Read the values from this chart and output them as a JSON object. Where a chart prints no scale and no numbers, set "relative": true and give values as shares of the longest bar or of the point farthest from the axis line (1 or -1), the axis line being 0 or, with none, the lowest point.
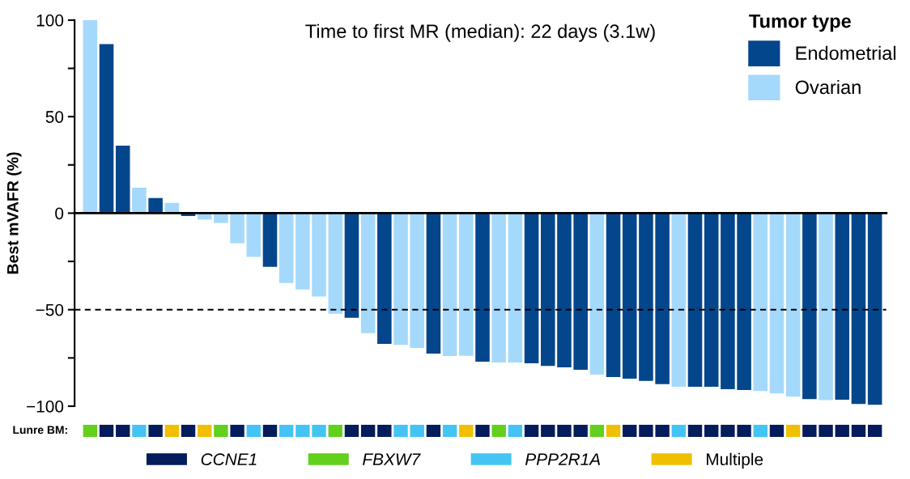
{
  "chart_data": [
    {
      "type": "bar",
      "title": "Time to first MR (median): 22 days (3.1w)",
      "ylabel": "Best mVAFR (%)",
      "legend_title": "Tumor type",
      "legend": "top right",
      "categories": [
        null,
        null,
        null,
        null,
        null,
        null,
        null,
        null,
        null,
        null,
        null,
        null,
        null,
        null,
        null,
        null,
        null,
        null,
        null,
        null,
        null,
        null,
        null,
        null,
        null,
        null,
        null,
        null,
        null,
        null,
        null,
        null,
        null,
        null,
        null,
        null,
        null,
        null,
        null,
        null,
        null,
        null,
        null,
        null,
        null,
        null,
        null,
        null,
        null
      ],
      "series": [
        {
          "name": "Endometrial",
          "color": "#04468c",
          "values": [
            null,
            87.6,
            35.0,
            null,
            7.8,
            null,
            -1.5,
            null,
            null,
            null,
            null,
            -27.8,
            null,
            null,
            null,
            null,
            -54.2,
            null,
            -67.7,
            null,
            null,
            -72.7,
            null,
            null,
            -76.9,
            null,
            null,
            -77.8,
            -79.1,
            -79.9,
            -81.1,
            null,
            -84.9,
            -85.7,
            -86.9,
            -88.6,
            null,
            -89.9,
            -89.9,
            -91.2,
            -91.6,
            null,
            null,
            null,
            -96.3,
            null,
            -96.6,
            -98.8,
            -99.3
          ]
        },
        {
          "name": "Ovarian",
          "color": "#a5d9fb",
          "values": [
            100,
            null,
            null,
            13.2,
            null,
            5.3,
            null,
            -3.3,
            -5.1,
            -15.6,
            -22.7,
            null,
            -36.2,
            -39.5,
            -43.2,
            -52.1,
            null,
            -62.2,
            null,
            -68.2,
            -69.8,
            null,
            -74.0,
            -73.9,
            null,
            -77.4,
            -77.4,
            null,
            null,
            null,
            null,
            -83.6,
            null,
            null,
            null,
            null,
            -89.9,
            null,
            null,
            null,
            null,
            -92.1,
            -93.4,
            -95.1,
            null,
            -96.8,
            null,
            null,
            null
          ]
        }
      ],
      "ylim": [
        -100,
        100
      ],
      "yticks": [
        -100,
        {
          "value": -75,
          "label": null
        },
        {
          "value": -50,
          "label": "−50"
        },
        {
          "value": -25,
          "label": null
        },
        0,
        {
          "value": 25,
          "label": null
        },
        50,
        {
          "value": 75,
          "label": null
        },
        100
      ],
      "ref_lines": [
        {
          "axis": "y",
          "value": -50,
          "color": "#000000",
          "line_style": "dashed"
        }
      ],
      "grid": false
    },
    {
      "type": "bar",
      "legend": "bottom",
      "relative": true,
      "ylabel": "Lunre BM:",
      "categories": [
        null,
        null,
        null,
        null,
        null,
        null,
        null,
        null,
        null,
        null,
        null,
        null,
        null,
        null,
        null,
        null,
        null,
        null,
        null,
        null,
        null,
        null,
        null,
        null,
        null,
        null,
        null,
        null,
        null,
        null,
        null,
        null,
        null,
        null,
        null,
        null,
        null,
        null,
        null,
        null,
        null,
        null,
        null,
        null,
        null,
        null,
        null,
        null,
        null
      ],
      "series": [
        {
          "name": "CCNE1",
          "color": "#041c5c",
          "values": [
            null,
            1,
            1,
            null,
            1,
            null,
            1,
            null,
            null,
            1,
            null,
            1,
            null,
            null,
            null,
            null,
            1,
            1,
            1,
            null,
            null,
            1,
            null,
            null,
            1,
            null,
            null,
            1,
            1,
            1,
            1,
            null,
            null,
            1,
            1,
            1,
            null,
            1,
            1,
            1,
            1,
            null,
            1,
            null,
            1,
            1,
            1,
            1,
            1
          ]
        },
        {
          "name": "FBXW7",
          "color": "#62d01c",
          "values": [
            1,
            null,
            null,
            null,
            null,
            null,
            null,
            null,
            1,
            null,
            null,
            null,
            null,
            null,
            null,
            1,
            null,
            null,
            null,
            null,
            null,
            null,
            null,
            null,
            null,
            1,
            null,
            null,
            null,
            null,
            null,
            1,
            null,
            null,
            null,
            null,
            null,
            null,
            null,
            null,
            null,
            null,
            null,
            null,
            null,
            null,
            null,
            null,
            null
          ]
        },
        {
          "name": "PPP2R1A",
          "color": "#44c4f4",
          "values": [
            null,
            null,
            null,
            1,
            null,
            null,
            null,
            null,
            null,
            null,
            1,
            null,
            1,
            1,
            1,
            null,
            null,
            null,
            null,
            1,
            1,
            null,
            1,
            null,
            null,
            null,
            1,
            null,
            null,
            null,
            null,
            null,
            null,
            null,
            null,
            null,
            1,
            null,
            null,
            null,
            null,
            1,
            null,
            null,
            null,
            null,
            null,
            null,
            null
          ]
        },
        {
          "name": "Multiple",
          "color": "#f0c000",
          "values": [
            null,
            null,
            null,
            null,
            null,
            1,
            null,
            1,
            null,
            null,
            null,
            null,
            null,
            null,
            null,
            null,
            null,
            null,
            null,
            null,
            null,
            null,
            null,
            1,
            null,
            null,
            null,
            null,
            null,
            null,
            null,
            null,
            1,
            null,
            null,
            null,
            null,
            null,
            null,
            null,
            null,
            null,
            null,
            1,
            null,
            null,
            null,
            null,
            null
          ]
        }
      ]
    }
  ]
}
